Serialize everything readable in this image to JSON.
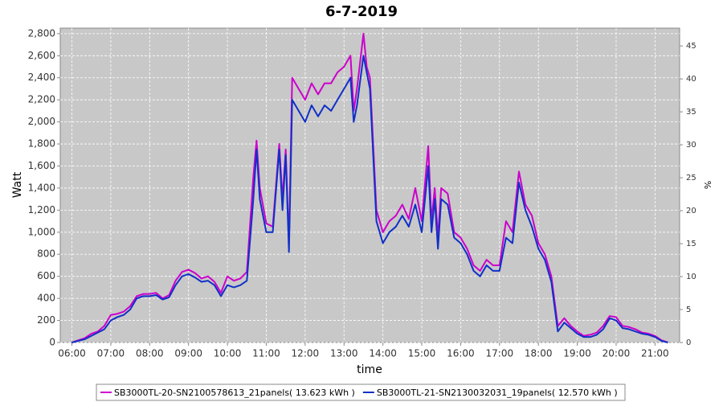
{
  "chart_data": {
    "type": "line",
    "title": "6-7-2019",
    "x_label": "time",
    "y_label": "Watt",
    "y2_label": "%",
    "x": [
      "06:00",
      "06:10",
      "06:20",
      "06:30",
      "06:40",
      "06:50",
      "07:00",
      "07:10",
      "07:20",
      "07:30",
      "07:40",
      "07:50",
      "08:00",
      "08:10",
      "08:20",
      "08:30",
      "08:40",
      "08:50",
      "09:00",
      "09:10",
      "09:20",
      "09:30",
      "09:40",
      "09:50",
      "10:00",
      "10:10",
      "10:20",
      "10:30",
      "10:40",
      "10:45",
      "10:50",
      "11:00",
      "11:10",
      "11:20",
      "11:25",
      "11:30",
      "11:35",
      "11:40",
      "11:50",
      "12:00",
      "12:10",
      "12:20",
      "12:30",
      "12:40",
      "12:50",
      "13:00",
      "13:10",
      "13:15",
      "13:20",
      "13:30",
      "13:35",
      "13:40",
      "13:50",
      "14:00",
      "14:10",
      "14:20",
      "14:30",
      "14:40",
      "14:50",
      "15:00",
      "15:10",
      "15:15",
      "15:20",
      "15:25",
      "15:30",
      "15:40",
      "15:50",
      "16:00",
      "16:10",
      "16:20",
      "16:30",
      "16:40",
      "16:50",
      "17:00",
      "17:10",
      "17:20",
      "17:30",
      "17:40",
      "17:50",
      "18:00",
      "18:10",
      "18:20",
      "18:30",
      "18:40",
      "18:50",
      "19:00",
      "19:10",
      "19:20",
      "19:30",
      "19:40",
      "19:50",
      "20:00",
      "20:10",
      "20:20",
      "20:30",
      "20:40",
      "20:50",
      "21:00",
      "21:10",
      "21:20"
    ],
    "series": [
      {
        "name": "SB3000TL-20-SN2100578613_21panels( 13.623 kWh )",
        "color": "#cc00cc",
        "values": [
          0,
          20,
          40,
          80,
          100,
          150,
          250,
          260,
          280,
          330,
          420,
          440,
          440,
          450,
          400,
          430,
          560,
          640,
          660,
          630,
          580,
          600,
          550,
          450,
          600,
          560,
          580,
          640,
          1500,
          1830,
          1400,
          1080,
          1050,
          1800,
          1300,
          1750,
          900,
          2400,
          2300,
          2200,
          2350,
          2250,
          2350,
          2350,
          2450,
          2500,
          2600,
          2100,
          2300,
          2800,
          2500,
          2400,
          1200,
          1000,
          1100,
          1150,
          1250,
          1120,
          1400,
          1100,
          1780,
          1100,
          1400,
          950,
          1400,
          1350,
          1000,
          950,
          850,
          700,
          650,
          750,
          700,
          700,
          1100,
          1000,
          1550,
          1250,
          1150,
          900,
          800,
          600,
          150,
          220,
          150,
          100,
          60,
          70,
          90,
          150,
          240,
          230,
          150,
          140,
          120,
          90,
          80,
          60,
          20,
          0
        ]
      },
      {
        "name": "SB3000TL-21-SN2130032031_19panels( 12.570 kWh )",
        "color": "#1030c8",
        "values": [
          0,
          15,
          30,
          60,
          90,
          120,
          200,
          230,
          250,
          300,
          400,
          420,
          420,
          430,
          390,
          410,
          520,
          600,
          620,
          590,
          550,
          560,
          520,
          420,
          520,
          500,
          520,
          560,
          1300,
          1750,
          1300,
          1000,
          1000,
          1750,
          1200,
          1700,
          820,
          2200,
          2100,
          2000,
          2150,
          2050,
          2150,
          2100,
          2200,
          2300,
          2400,
          2000,
          2150,
          2600,
          2450,
          2300,
          1100,
          900,
          1000,
          1050,
          1150,
          1050,
          1250,
          1000,
          1600,
          1000,
          1300,
          850,
          1300,
          1250,
          950,
          900,
          800,
          650,
          600,
          700,
          650,
          650,
          950,
          900,
          1450,
          1200,
          1050,
          850,
          750,
          550,
          100,
          180,
          130,
          80,
          50,
          50,
          70,
          120,
          220,
          200,
          130,
          120,
          100,
          80,
          70,
          50,
          15,
          0
        ]
      }
    ],
    "xlim": [
      "05:42",
      "21:38"
    ],
    "xticks": [
      "06:00",
      "07:00",
      "08:00",
      "09:00",
      "10:00",
      "11:00",
      "12:00",
      "13:00",
      "14:00",
      "15:00",
      "16:00",
      "17:00",
      "18:00",
      "19:00",
      "20:00",
      "21:00"
    ],
    "ylim": [
      0,
      2850
    ],
    "yticks": [
      0,
      200,
      400,
      600,
      800,
      {
        "value": 1000,
        "label": "1,000"
      },
      {
        "value": 1200,
        "label": "1,200"
      },
      {
        "value": 1400,
        "label": "1,400"
      },
      {
        "value": 1600,
        "label": "1,600"
      },
      {
        "value": 1800,
        "label": "1,800"
      },
      {
        "value": 2000,
        "label": "2,000"
      },
      {
        "value": 2200,
        "label": "2,200"
      },
      {
        "value": 2400,
        "label": "2,400"
      },
      {
        "value": 2600,
        "label": "2,600"
      },
      {
        "value": 2800,
        "label": "2,800"
      }
    ],
    "y2lim": [
      0,
      47.7
    ],
    "y2ticks": [
      0,
      5,
      10,
      15,
      20,
      25,
      30,
      35,
      40,
      45
    ],
    "grid": true
  }
}
